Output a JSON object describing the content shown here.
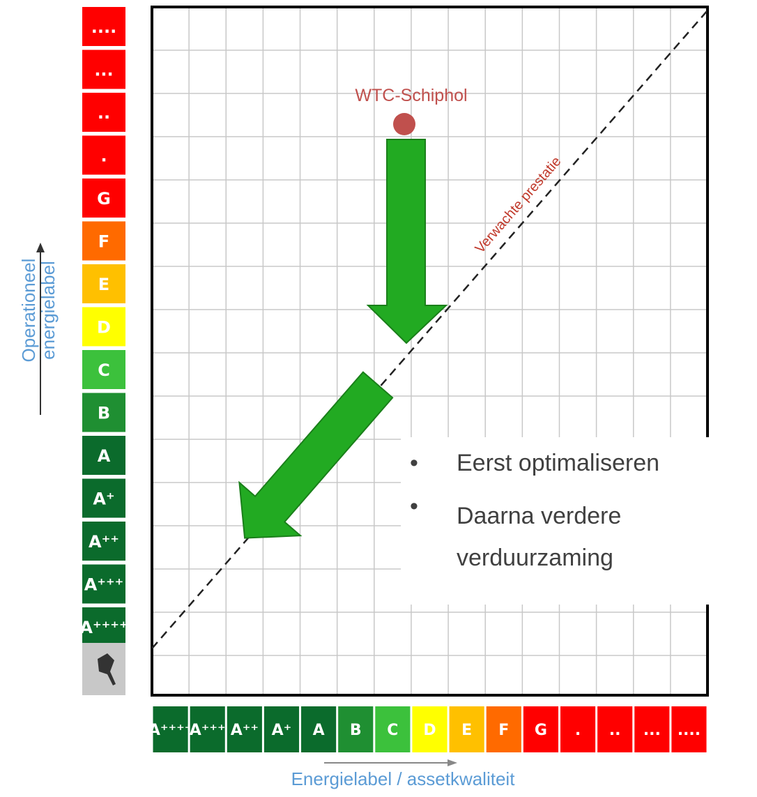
{
  "y_labels": [
    "....",
    "...",
    "..",
    ".",
    "G",
    "F",
    "E",
    "D",
    "C",
    "B",
    "A",
    "A⁺",
    "A⁺⁺",
    "A⁺⁺⁺",
    "A⁺⁺⁺⁺"
  ],
  "x_labels": [
    "A⁺⁺⁺⁺",
    "A⁺⁺⁺",
    "A⁺⁺",
    "A⁺",
    "A",
    "B",
    "C",
    "D",
    "E",
    "F",
    "G",
    ".",
    "..",
    "...",
    "...."
  ],
  "point_label": "WTC-Schiphol",
  "line_label": "Verwachte prestatie",
  "bullets": [
    "Eerst optimaliseren",
    "Daarna verdere verduurzaming"
  ],
  "y_axis_title": [
    "Operationeel",
    "energielabel"
  ],
  "x_axis_title": "Energielabel / assetkwaliteit"
}
